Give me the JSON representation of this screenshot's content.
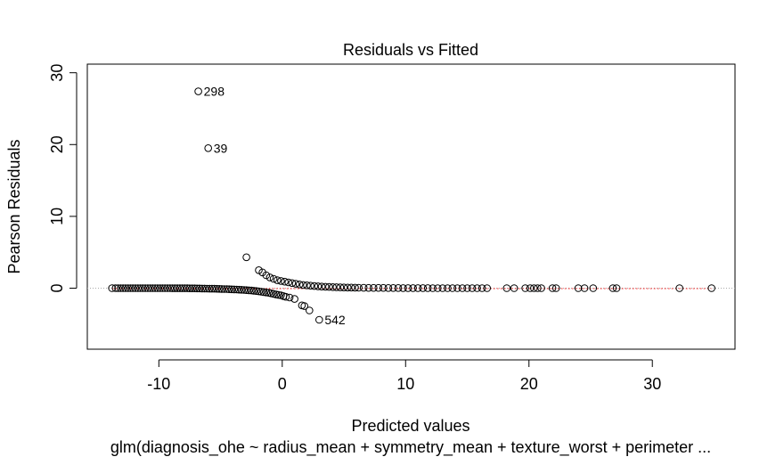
{
  "chart_data": {
    "type": "scatter",
    "title": "Residuals vs Fitted",
    "xlabel": "Predicted values",
    "ylabel": "Pearson Residuals",
    "subtitle": "glm(diagnosis_ohe ~ radius_mean + symmetry_mean + texture_worst + perimeter ...",
    "xlim": [
      -15.8,
      36.7
    ],
    "ylim": [
      -8.5,
      31.2
    ],
    "xticks": [
      -10,
      0,
      10,
      20,
      30
    ],
    "yticks": [
      0,
      10,
      20,
      30
    ],
    "grid": false,
    "legend": "none",
    "reference_line": {
      "y": 0,
      "style": "dotted",
      "color": "#aaaaaa"
    },
    "smooth_line": {
      "color": "#ff0000",
      "style": "dashed"
    },
    "point_style": "open-circle",
    "labels": [
      {
        "text": "298",
        "x": -6.8,
        "y": 27.4
      },
      {
        "text": "39",
        "x": -6.0,
        "y": 19.5
      },
      {
        "text": "542",
        "x": 3.0,
        "y": -4.4
      }
    ],
    "series": [
      {
        "x": [
          -13.8,
          -13.5,
          -13.3,
          -13.1,
          -12.9,
          -12.7,
          -12.5,
          -12.3,
          -12.1,
          -11.9,
          -11.7,
          -11.5,
          -11.3,
          -11.1,
          -10.9,
          -10.7,
          -10.5,
          -10.3,
          -10.1,
          -9.9,
          -9.7,
          -9.5,
          -9.3,
          -9.1,
          -8.9,
          -8.7,
          -8.5,
          -8.3,
          -8.1,
          -7.9,
          -7.7,
          -7.5,
          -7.3,
          -7.1,
          -6.9,
          -6.7,
          -6.5,
          -6.3,
          -6.1,
          -5.9,
          -5.7,
          -5.5,
          -5.3,
          -5.1,
          -4.9,
          -4.7,
          -4.5,
          -4.3,
          -4.1,
          -3.9,
          -3.7,
          -3.5,
          -3.3,
          -3.1,
          -2.9,
          -2.7,
          -2.5,
          -2.3,
          -2.1,
          -1.9,
          -1.7,
          -1.5,
          -1.3,
          -1.1,
          -0.9,
          -0.7,
          -0.5,
          -0.3,
          -0.1,
          0.1,
          0.3,
          0.6,
          1.0,
          1.6,
          1.8,
          2.2,
          3.0
        ],
        "y": [
          0,
          0,
          0,
          0,
          0,
          0,
          0,
          0,
          0,
          0,
          0,
          0,
          0,
          0,
          0,
          0,
          0,
          0,
          0,
          0,
          0,
          0,
          0,
          0,
          -0.01,
          -0.01,
          -0.01,
          -0.01,
          -0.02,
          -0.02,
          -0.02,
          -0.03,
          -0.03,
          -0.03,
          -0.04,
          -0.04,
          -0.05,
          -0.05,
          -0.06,
          -0.07,
          -0.08,
          -0.08,
          -0.09,
          -0.1,
          -0.11,
          -0.12,
          -0.13,
          -0.15,
          -0.16,
          -0.18,
          -0.19,
          -0.21,
          -0.23,
          -0.25,
          -0.27,
          -0.3,
          -0.33,
          -0.36,
          -0.4,
          -0.45,
          -0.5,
          -0.55,
          -0.6,
          -0.65,
          -0.72,
          -0.8,
          -0.88,
          -0.95,
          -1.0,
          -1.1,
          -1.2,
          -1.3,
          -1.5,
          -2.4,
          -2.5,
          -3.1,
          -4.4
        ]
      },
      {
        "x": [
          -6.8,
          -6.0,
          -2.9,
          -1.9,
          -1.6,
          -1.3,
          -1.0,
          -0.7,
          -0.4,
          -0.1,
          0.2,
          0.5,
          0.8,
          1.1,
          1.4,
          1.7,
          2.0,
          2.3,
          2.6,
          2.9,
          3.2,
          3.5,
          3.8,
          4.1,
          4.4,
          4.7,
          5.0,
          5.3,
          5.6,
          5.9,
          6.2,
          6.6,
          7.0,
          7.4,
          7.8,
          8.2,
          8.6,
          9.0,
          9.4,
          9.8,
          10.2,
          10.6,
          11.0,
          11.4,
          11.8,
          12.2,
          12.6,
          13.0,
          13.4,
          13.8,
          14.2,
          14.6,
          15.0,
          15.4,
          15.8,
          16.2,
          16.6,
          18.2,
          18.8,
          19.7,
          20.1,
          20.4,
          20.7,
          21.0,
          21.9,
          22.2,
          24.0,
          24.5,
          25.2,
          26.8,
          27.1,
          32.2,
          34.8
        ],
        "y": [
          27.4,
          19.5,
          4.3,
          2.5,
          2.2,
          1.8,
          1.5,
          1.3,
          1.1,
          1.0,
          0.9,
          0.8,
          0.7,
          0.6,
          0.52,
          0.45,
          0.4,
          0.35,
          0.3,
          0.26,
          0.22,
          0.2,
          0.17,
          0.15,
          0.13,
          0.11,
          0.1,
          0.09,
          0.08,
          0.07,
          0.06,
          0.05,
          0.04,
          0.04,
          0.03,
          0.03,
          0.02,
          0.02,
          0.02,
          0.01,
          0.01,
          0.01,
          0.01,
          0.01,
          0.01,
          0,
          0,
          0,
          0,
          0,
          0,
          0,
          0,
          0,
          0,
          0,
          0,
          0,
          0,
          0,
          0,
          0,
          0,
          0,
          0,
          0,
          0,
          0,
          0,
          0,
          0,
          0,
          0
        ]
      }
    ]
  }
}
